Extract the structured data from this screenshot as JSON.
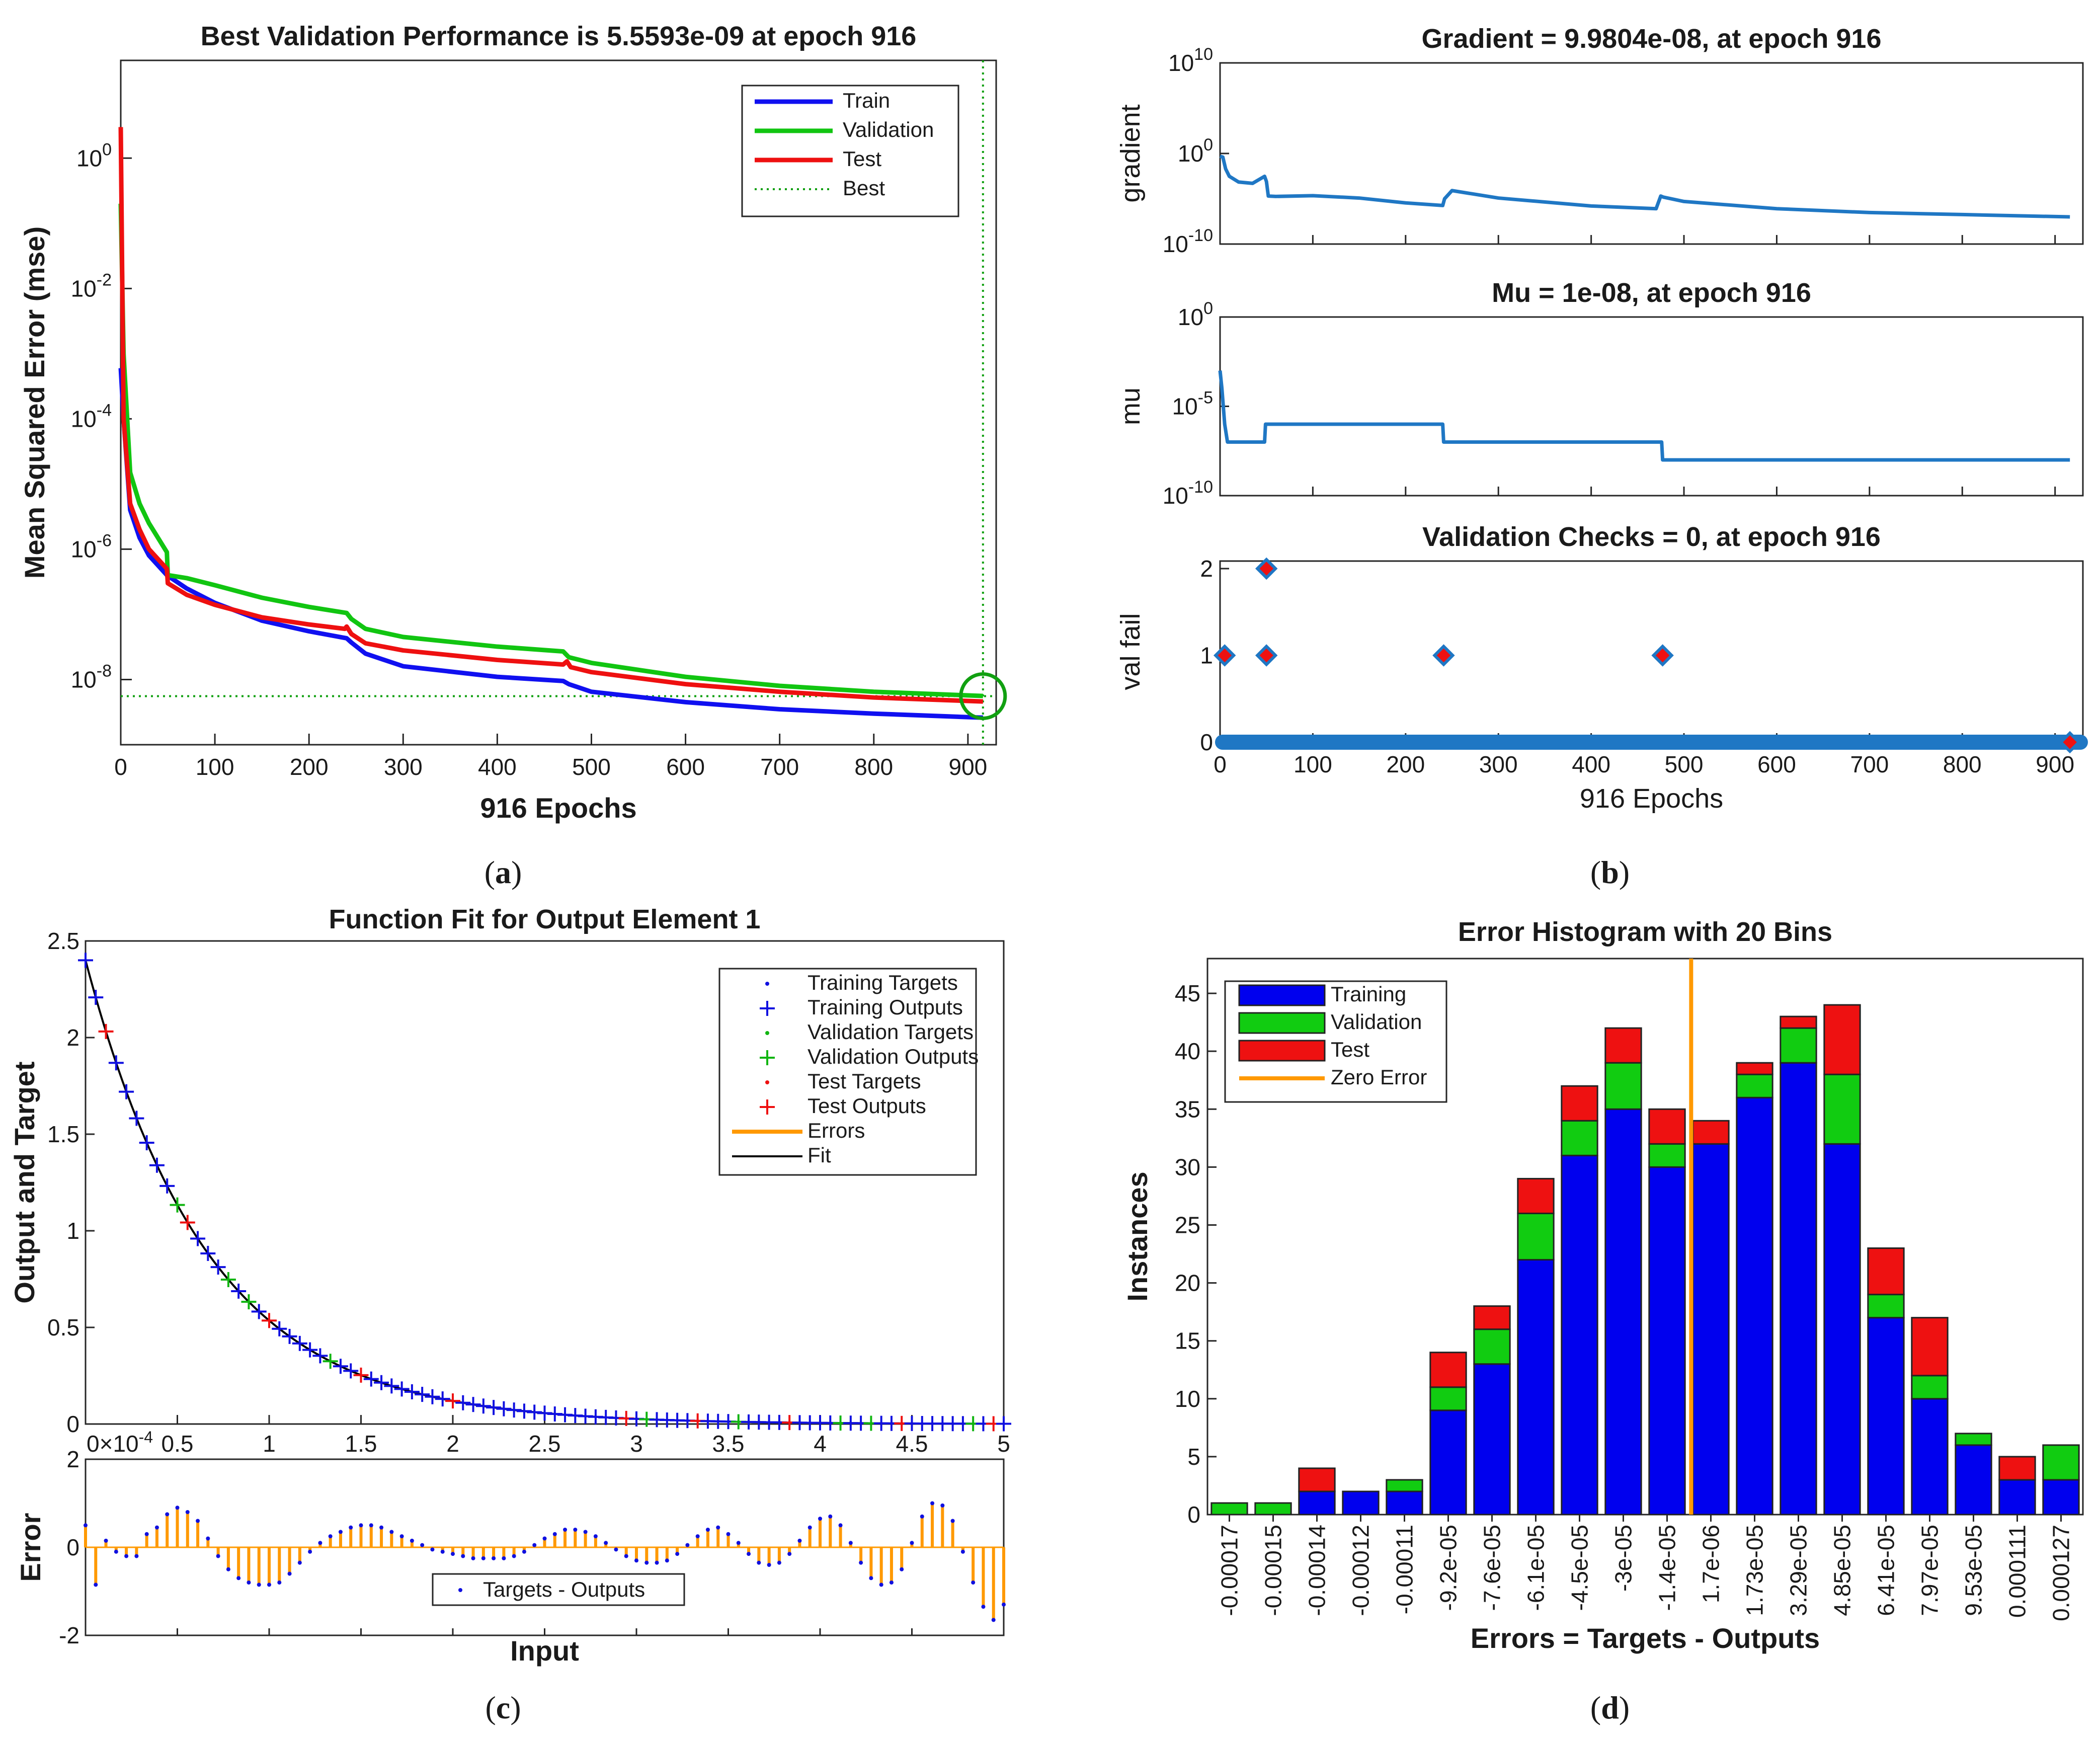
{
  "chart_data": [
    {
      "id": "a",
      "type": "line",
      "caption": "a",
      "title": "Best Validation Performance is 5.5593e-09 at epoch 916",
      "xlabel": "916 Epochs",
      "ylabel": "Mean Squared Error  (mse)",
      "yscale": "log",
      "xlim": [
        0,
        930
      ],
      "ylim_exp": [
        -9,
        1.5
      ],
      "x_ticks": [
        0,
        100,
        200,
        300,
        400,
        500,
        600,
        700,
        800,
        900
      ],
      "y_ticks": [
        {
          "base": "10",
          "exp": "0"
        },
        {
          "base": "10",
          "exp": "-2"
        },
        {
          "base": "10",
          "exp": "-4"
        },
        {
          "base": "10",
          "exp": "-6"
        },
        {
          "base": "10",
          "exp": "-8"
        }
      ],
      "best_epoch": 916,
      "best_value": 5.5593e-09,
      "legend": [
        {
          "name": "Train",
          "color": "#1010f0",
          "style": "solid"
        },
        {
          "name": "Validation",
          "color": "#11c511",
          "style": "solid"
        },
        {
          "name": "Test",
          "color": "#ee1010",
          "style": "solid"
        },
        {
          "name": "Best",
          "color": "#11a011",
          "style": "dotted"
        }
      ],
      "series": [
        {
          "name": "Train",
          "x": [
            0,
            3,
            10,
            20,
            30,
            49,
            70,
            100,
            150,
            200,
            240,
            245,
            260,
            300,
            400,
            470,
            476,
            500,
            600,
            700,
            800,
            916
          ],
          "y": [
            0.0006,
            0.0001,
            4e-06,
            1.5e-06,
            8e-07,
            4e-07,
            2.5e-07,
            1.5e-07,
            8e-08,
            5.5e-08,
            4.3e-08,
            3.7e-08,
            2.5e-08,
            1.6e-08,
            1.1e-08,
            9.5e-09,
            8.5e-09,
            6.5e-09,
            4.5e-09,
            3.5e-09,
            3e-09,
            2.6e-09
          ]
        },
        {
          "name": "Validation",
          "x": [
            0,
            3,
            10,
            20,
            30,
            49,
            50,
            70,
            100,
            150,
            200,
            240,
            245,
            260,
            300,
            400,
            470,
            476,
            500,
            600,
            700,
            800,
            916
          ],
          "y": [
            0.2,
            0.001,
            1.5e-05,
            5e-06,
            2.5e-06,
            9e-07,
            4e-07,
            3.6e-07,
            2.8e-07,
            1.8e-07,
            1.3e-07,
            1.05e-07,
            8.5e-08,
            6e-08,
            4.5e-08,
            3.2e-08,
            2.7e-08,
            2.2e-08,
            1.8e-08,
            1.1e-08,
            8e-09,
            6.5e-09,
            5.6e-09
          ]
        },
        {
          "name": "Test",
          "x": [
            0,
            3,
            10,
            20,
            30,
            49,
            50,
            70,
            100,
            150,
            200,
            238,
            240,
            245,
            260,
            300,
            400,
            470,
            474,
            478,
            500,
            600,
            700,
            800,
            916
          ],
          "y": [
            3,
            0.0001,
            5e-06,
            2e-06,
            1e-06,
            5e-07,
            3e-07,
            2e-07,
            1.4e-07,
            9e-08,
            7e-08,
            6e-08,
            6.5e-08,
            5e-08,
            3.6e-08,
            2.8e-08,
            2e-08,
            1.7e-08,
            1.9e-08,
            1.55e-08,
            1.3e-08,
            8.5e-09,
            6.5e-09,
            5.3e-09,
            4.6e-09
          ]
        }
      ]
    },
    {
      "id": "b",
      "type": "line",
      "caption": "b",
      "xlabel": "916 Epochs",
      "xlim": [
        0,
        930
      ],
      "x_ticks": [
        0,
        100,
        200,
        300,
        400,
        500,
        600,
        700,
        800,
        900
      ],
      "line_color": "#1f77c4",
      "panels": [
        {
          "title": "Gradient = 9.9804e-08, at epoch 916",
          "ylabel": "gradient",
          "yscale": "log",
          "ylim_exp": [
            -10,
            10
          ],
          "y_ticks": [
            {
              "base": "10",
              "exp": "10"
            },
            {
              "base": "10",
              "exp": "0"
            },
            {
              "base": "10",
              "exp": "-10"
            }
          ],
          "x": [
            0,
            3,
            6,
            10,
            20,
            35,
            48,
            50,
            52,
            60,
            100,
            150,
            200,
            240,
            242,
            250,
            300,
            400,
            470,
            475,
            478,
            500,
            600,
            700,
            800,
            916
          ],
          "y": [
            0.5,
            0.4,
            0.02,
            0.003,
            0.0007,
            0.0005,
            0.003,
            0.0008,
            2e-05,
            1.8e-05,
            2.2e-05,
            1.2e-05,
            3.5e-06,
            1.8e-06,
            1e-05,
            8e-05,
            1.2e-05,
            1.6e-06,
            8e-07,
            2e-05,
            1.5e-05,
            5e-06,
            8e-07,
            3e-07,
            1.8e-07,
            1e-07
          ]
        },
        {
          "title": "Mu = 1e-08, at epoch 916",
          "ylabel": "mu",
          "yscale": "log",
          "ylim_exp": [
            -10,
            0
          ],
          "y_ticks": [
            {
              "base": "10",
              "exp": "0"
            },
            {
              "base": "10",
              "exp": "-5"
            },
            {
              "base": "10",
              "exp": "-10"
            }
          ],
          "x": [
            0,
            2,
            5,
            8,
            48,
            49,
            240,
            241,
            476,
            477,
            916
          ],
          "y": [
            0.001,
            0.0001,
            1e-06,
            1e-07,
            1e-07,
            1e-06,
            1e-06,
            1e-07,
            1e-07,
            1e-08,
            1e-08
          ]
        },
        {
          "title": "Validation Checks = 0, at epoch 916",
          "ylabel": "val fail",
          "yscale": "linear",
          "ylim": [
            0,
            2
          ],
          "y_ticks": [
            0,
            1,
            2
          ],
          "markers": [
            {
              "x": 5,
              "y": 1
            },
            {
              "x": 50,
              "y": 1
            },
            {
              "x": 50,
              "y": 2
            },
            {
              "x": 241,
              "y": 1
            },
            {
              "x": 477,
              "y": 1
            },
            {
              "x": 916,
              "y": 0
            }
          ]
        }
      ]
    },
    {
      "id": "c",
      "type": "scatter",
      "caption": "c",
      "title": "Function Fit for Output Element 1",
      "xlabel": "Input",
      "ylabel": "Output and Target",
      "error_ylabel": "Error",
      "xlim": [
        0,
        5
      ],
      "ylim": [
        0,
        2.5
      ],
      "error_ylim": [
        -2,
        2
      ],
      "x_ticks": [
        "0",
        "0.5",
        "1",
        "1.5",
        "2",
        "2.5",
        "3",
        "3.5",
        "4",
        "4.5",
        "5"
      ],
      "y_ticks": [
        "0",
        "0.5",
        "1",
        "1.5",
        "2",
        "2.5"
      ],
      "error_y_ticks": [
        "-2",
        "0",
        "2"
      ],
      "x_exponent_label": "×10",
      "x_exponent": "-4",
      "x_exponent_prefix": "0",
      "fit_curve": "y = 2.4 * exp(-1.5 * x)",
      "test_x": [
        0.1,
        0.55,
        1.0,
        1.5,
        2.0,
        2.95,
        3.35,
        3.85,
        4.45,
        4.95
      ],
      "validation_x": [
        0.5,
        0.8,
        0.9,
        1.35,
        3.05,
        3.55,
        4.1,
        4.3,
        4.85
      ],
      "legend": [
        {
          "name": "Training Targets",
          "kind": "dot",
          "color": "#1010e0"
        },
        {
          "name": "Training Outputs",
          "kind": "plus",
          "color": "#1010e0"
        },
        {
          "name": "Validation Targets",
          "kind": "dot",
          "color": "#11b511"
        },
        {
          "name": "Validation Outputs",
          "kind": "plus",
          "color": "#11b511"
        },
        {
          "name": "Test Targets",
          "kind": "dot",
          "color": "#ee1010"
        },
        {
          "name": "Test Outputs",
          "kind": "plus",
          "color": "#ee1010"
        },
        {
          "name": "Errors",
          "kind": "line",
          "color": "#ff9900"
        },
        {
          "name": "Fit",
          "kind": "line",
          "color": "#000000"
        }
      ],
      "error_legend": "Targets - Outputs",
      "error_values": [
        0.5,
        -0.85,
        0.15,
        -0.1,
        -0.2,
        -0.2,
        0.3,
        0.45,
        0.75,
        0.9,
        0.8,
        0.6,
        0.2,
        -0.2,
        -0.5,
        -0.7,
        -0.8,
        -0.85,
        -0.85,
        -0.8,
        -0.6,
        -0.35,
        -0.1,
        0.1,
        0.25,
        0.35,
        0.45,
        0.5,
        0.5,
        0.45,
        0.35,
        0.25,
        0.15,
        0.05,
        -0.05,
        -0.1,
        -0.15,
        -0.2,
        -0.25,
        -0.25,
        -0.25,
        -0.25,
        -0.2,
        -0.1,
        0.05,
        0.2,
        0.3,
        0.4,
        0.4,
        0.35,
        0.25,
        0.1,
        -0.05,
        -0.2,
        -0.3,
        -0.35,
        -0.35,
        -0.3,
        -0.15,
        0.05,
        0.25,
        0.4,
        0.45,
        0.3,
        0.1,
        -0.15,
        -0.35,
        -0.4,
        -0.35,
        -0.15,
        0.15,
        0.45,
        0.65,
        0.7,
        0.5,
        0.1,
        -0.35,
        -0.7,
        -0.85,
        -0.8,
        -0.5,
        0.1,
        0.7,
        1.0,
        0.95,
        0.6,
        -0.1,
        -0.8,
        -1.35,
        -1.65,
        -1.3
      ]
    },
    {
      "id": "d",
      "type": "bar",
      "caption": "d",
      "title": "Error Histogram with 20 Bins",
      "xlabel": "Errors = Targets - Outputs",
      "ylabel": "Instances",
      "ylim": [
        0,
        48
      ],
      "y_ticks": [
        0,
        5,
        10,
        15,
        20,
        25,
        30,
        35,
        40,
        45
      ],
      "categories": [
        "-0.00017",
        "-0.00015",
        "-0.00014",
        "-0.00012",
        "-0.00011",
        "-9.2e-05",
        "-7.6e-05",
        "-6.1e-05",
        "-4.5e-05",
        "-3e-05",
        "-1.4e-05",
        "1.7e-06",
        "1.73e-05",
        "3.29e-05",
        "4.85e-05",
        "6.41e-05",
        "7.97e-05",
        "9.53e-05",
        "0.000111",
        "0.000127"
      ],
      "series": [
        {
          "name": "Training",
          "color": "#0000ee",
          "values": [
            0,
            0,
            2,
            2,
            2,
            9,
            13,
            22,
            31,
            35,
            30,
            32,
            36,
            39,
            32,
            17,
            10,
            6,
            3,
            3
          ]
        },
        {
          "name": "Validation",
          "color": "#11cc11",
          "values": [
            1,
            1,
            0,
            0,
            1,
            2,
            3,
            4,
            3,
            4,
            2,
            0,
            2,
            3,
            6,
            2,
            2,
            1,
            0,
            3
          ]
        },
        {
          "name": "Test",
          "color": "#ee1111",
          "values": [
            0,
            0,
            2,
            0,
            0,
            3,
            2,
            3,
            3,
            3,
            3,
            2,
            1,
            1,
            6,
            4,
            5,
            0,
            2,
            0
          ]
        }
      ],
      "zero_error": {
        "name": "Zero Error",
        "color": "#ff9900",
        "x": 1.7e-06
      }
    }
  ]
}
